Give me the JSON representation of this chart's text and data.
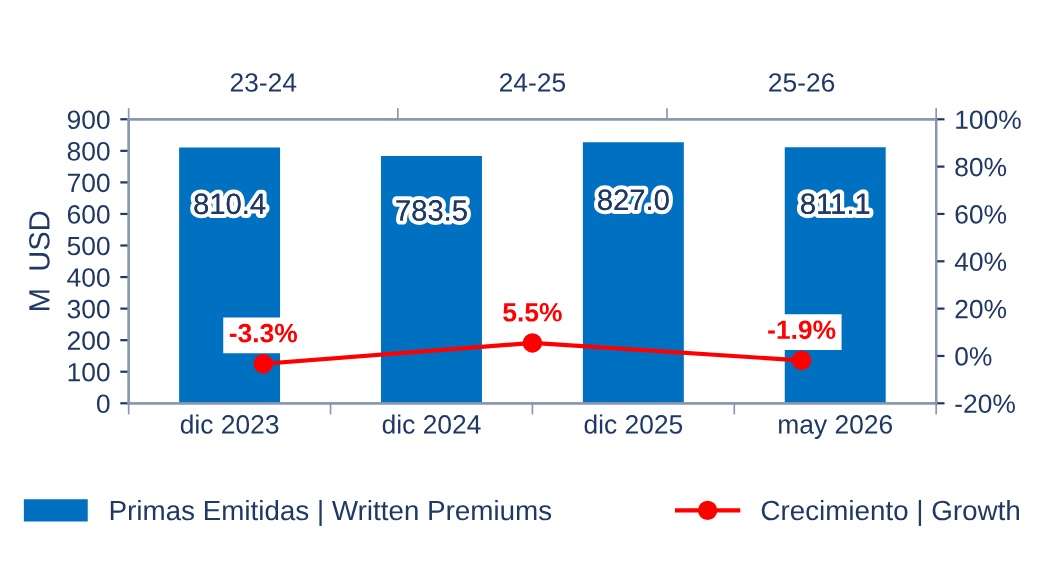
{
  "chart_data": [
    {
      "type": "bar",
      "ylabel": "M  USD",
      "categories": [
        "dic 2023",
        "dic 2024",
        "dic 2025",
        "may 2026"
      ],
      "series": [
        {
          "name": "Primas Emitidas | Written Premiums",
          "color": "#0070c0",
          "values": [
            810.4,
            783.5,
            827.0,
            811.1
          ],
          "value_labels": [
            "810.4",
            "783.5",
            "827.0",
            "811.1"
          ]
        }
      ],
      "ylim": [
        0,
        900
      ],
      "yticks": [
        0,
        100,
        200,
        300,
        400,
        500,
        600,
        700,
        800,
        900
      ],
      "legend": "bottom"
    },
    {
      "type": "line",
      "categories": [
        "23-24",
        "24-25",
        "25-26"
      ],
      "series": [
        {
          "name": "Crecimiento | Growth",
          "color": "#ff0000",
          "values": [
            -3.3,
            5.5,
            -1.9
          ],
          "value_labels": [
            "-3.3%",
            "5.5%",
            "-1.9%"
          ]
        }
      ],
      "ylim": [
        -20,
        100
      ],
      "yticks": [
        {
          "value": -20,
          "label": "-20%"
        },
        {
          "value": 0,
          "label": "0%"
        },
        {
          "value": 20,
          "label": "20%"
        },
        {
          "value": 40,
          "label": "40%"
        },
        {
          "value": 60,
          "label": "60%"
        },
        {
          "value": 80,
          "label": "80%"
        },
        {
          "value": 100,
          "label": "100%"
        }
      ],
      "marker": "circle",
      "legend": "bottom"
    }
  ]
}
